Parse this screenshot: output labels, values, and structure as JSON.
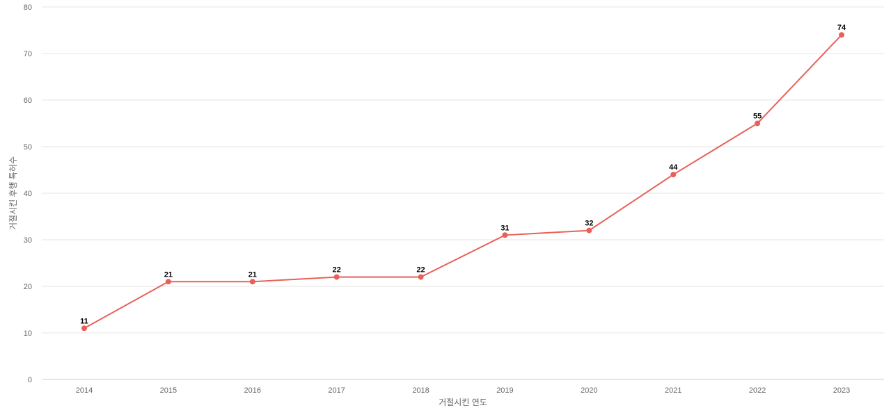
{
  "chart_data": {
    "type": "line",
    "title": "",
    "xlabel": "거절시킨 연도",
    "ylabel": "거절시킨 후행 특허수",
    "categories": [
      "2014",
      "2015",
      "2016",
      "2017",
      "2018",
      "2019",
      "2020",
      "2021",
      "2022",
      "2023"
    ],
    "series": [
      {
        "values": [
          11,
          21,
          21,
          22,
          22,
          31,
          32,
          44,
          55,
          74
        ],
        "color": "#e8605a"
      }
    ],
    "ylim": [
      0,
      80
    ],
    "yticks": [
      0,
      10,
      20,
      30,
      40,
      50,
      60,
      70,
      80
    ],
    "grid": true,
    "data_labels": true,
    "legend": "none"
  }
}
